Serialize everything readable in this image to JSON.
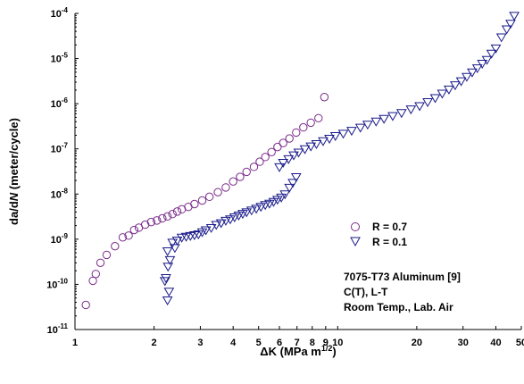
{
  "chart_data": {
    "type": "scatter",
    "xlabel": "ΔK (MPa m^1/2)",
    "ylabel": "da/dN (meter/cycle)",
    "x_scale": "log",
    "y_scale": "log",
    "xlim": [
      1,
      50
    ],
    "ylim": [
      1e-11,
      0.0001
    ],
    "x_ticks": [
      1,
      2,
      3,
      4,
      5,
      6,
      7,
      8,
      9,
      10,
      20,
      30,
      40,
      50
    ],
    "x_tick_labels": [
      "1",
      "2",
      "3",
      "4",
      "5",
      "6",
      "7",
      "8",
      "9",
      "10",
      "20",
      "30",
      "40",
      "50"
    ],
    "y_ticks": [
      -11,
      -10,
      -9,
      -8,
      -7,
      -6,
      -5,
      -4
    ],
    "grid": false,
    "legend_position": "right",
    "annotations": [
      "7075-T73 Aluminum [9]",
      "C(T), L-T",
      "Room Temp., Lab. Air"
    ],
    "series": [
      {
        "name": "R = 0.7",
        "marker": "circle",
        "color": "#7a2a8a",
        "points": [
          [
            1.1,
            3.5e-11
          ],
          [
            1.17,
            1.2e-10
          ],
          [
            1.2,
            1.7e-10
          ],
          [
            1.25,
            3e-10
          ],
          [
            1.32,
            4.5e-10
          ],
          [
            1.42,
            7e-10
          ],
          [
            1.52,
            1.1e-09
          ],
          [
            1.6,
            1.2e-09
          ],
          [
            1.68,
            1.6e-09
          ],
          [
            1.75,
            1.8e-09
          ],
          [
            1.85,
            2.1e-09
          ],
          [
            1.95,
            2.4e-09
          ],
          [
            2.05,
            2.6e-09
          ],
          [
            2.15,
            2.9e-09
          ],
          [
            2.25,
            3.2e-09
          ],
          [
            2.35,
            3.6e-09
          ],
          [
            2.45,
            4.1e-09
          ],
          [
            2.55,
            4.6e-09
          ],
          [
            2.7,
            5.2e-09
          ],
          [
            2.85,
            6e-09
          ],
          [
            3.05,
            7.2e-09
          ],
          [
            3.25,
            8.7e-09
          ],
          [
            3.5,
            1.1e-08
          ],
          [
            3.75,
            1.4e-08
          ],
          [
            4.0,
            1.9e-08
          ],
          [
            4.25,
            2.4e-08
          ],
          [
            4.5,
            3.1e-08
          ],
          [
            4.8,
            4e-08
          ],
          [
            5.05,
            5.2e-08
          ],
          [
            5.3,
            6.6e-08
          ],
          [
            5.6,
            8.5e-08
          ],
          [
            5.9,
            1.1e-07
          ],
          [
            6.2,
            1.35e-07
          ],
          [
            6.55,
            1.7e-07
          ],
          [
            6.95,
            2.3e-07
          ],
          [
            7.4,
            3e-07
          ],
          [
            7.9,
            3.8e-07
          ],
          [
            8.45,
            4.8e-07
          ],
          [
            8.9,
            1.4e-06
          ]
        ]
      },
      {
        "name": "R = 0.1",
        "marker": "triangle-down",
        "color": "#1a1a8a",
        "points": [
          [
            2.25,
            4.5e-11
          ],
          [
            2.28,
            7e-11
          ],
          [
            2.2,
            1.2e-10
          ],
          [
            2.22,
            1.4e-10
          ],
          [
            2.26,
            2.5e-10
          ],
          [
            2.3,
            3.5e-10
          ],
          [
            2.25,
            5.5e-10
          ],
          [
            2.4,
            6.5e-10
          ],
          [
            2.35,
            8.5e-10
          ],
          [
            2.45,
            9.5e-10
          ],
          [
            2.55,
            1.1e-09
          ],
          [
            2.65,
            1.15e-09
          ],
          [
            2.75,
            1.2e-09
          ],
          [
            2.85,
            1.25e-09
          ],
          [
            2.95,
            1.3e-09
          ],
          [
            3.05,
            1.45e-09
          ],
          [
            3.15,
            1.6e-09
          ],
          [
            3.3,
            1.8e-09
          ],
          [
            3.45,
            2.1e-09
          ],
          [
            3.6,
            2.3e-09
          ],
          [
            3.75,
            2.6e-09
          ],
          [
            3.9,
            2.8e-09
          ],
          [
            4.05,
            3.1e-09
          ],
          [
            4.2,
            3.4e-09
          ],
          [
            4.35,
            3.7e-09
          ],
          [
            4.5,
            4e-09
          ],
          [
            4.7,
            4.4e-09
          ],
          [
            4.9,
            4.8e-09
          ],
          [
            5.1,
            5.3e-09
          ],
          [
            5.3,
            5.8e-09
          ],
          [
            5.5,
            6.2e-09
          ],
          [
            5.7,
            6.8e-09
          ],
          [
            5.9,
            7.6e-09
          ],
          [
            6.1,
            8.5e-09
          ],
          [
            6.3,
            1e-08
          ],
          [
            6.55,
            1.4e-08
          ],
          [
            6.75,
            1.8e-08
          ],
          [
            6.95,
            2.4e-08
          ],
          [
            6.0,
            4e-08
          ],
          [
            6.2,
            5e-08
          ],
          [
            6.5,
            6e-08
          ],
          [
            6.8,
            7.3e-08
          ],
          [
            7.1,
            8.4e-08
          ],
          [
            7.5,
            1e-07
          ],
          [
            7.9,
            1.15e-07
          ],
          [
            8.3,
            1.3e-07
          ],
          [
            8.8,
            1.5e-07
          ],
          [
            9.3,
            1.7e-07
          ],
          [
            9.8,
            1.95e-07
          ],
          [
            10.5,
            2.2e-07
          ],
          [
            11.3,
            2.55e-07
          ],
          [
            12.2,
            3e-07
          ],
          [
            13.0,
            3.5e-07
          ],
          [
            14.0,
            4.1e-07
          ],
          [
            15.0,
            4.7e-07
          ],
          [
            16.2,
            5.4e-07
          ],
          [
            17.5,
            6.3e-07
          ],
          [
            19.0,
            7.6e-07
          ],
          [
            20.5,
            9e-07
          ],
          [
            22.0,
            1.1e-06
          ],
          [
            23.5,
            1.35e-06
          ],
          [
            25.0,
            1.7e-06
          ],
          [
            26.5,
            2.1e-06
          ],
          [
            28.0,
            2.6e-06
          ],
          [
            29.5,
            3.2e-06
          ],
          [
            31.0,
            4e-06
          ],
          [
            32.5,
            5e-06
          ],
          [
            34.0,
            6.2e-06
          ],
          [
            35.5,
            7.8e-06
          ],
          [
            37.0,
            9.5e-06
          ],
          [
            38.5,
            1.3e-05
          ],
          [
            40.0,
            1.7e-05
          ],
          [
            42.0,
            3e-05
          ],
          [
            44.0,
            4.5e-05
          ],
          [
            45.5,
            6e-05
          ],
          [
            47.0,
            9e-05
          ]
        ]
      }
    ]
  }
}
